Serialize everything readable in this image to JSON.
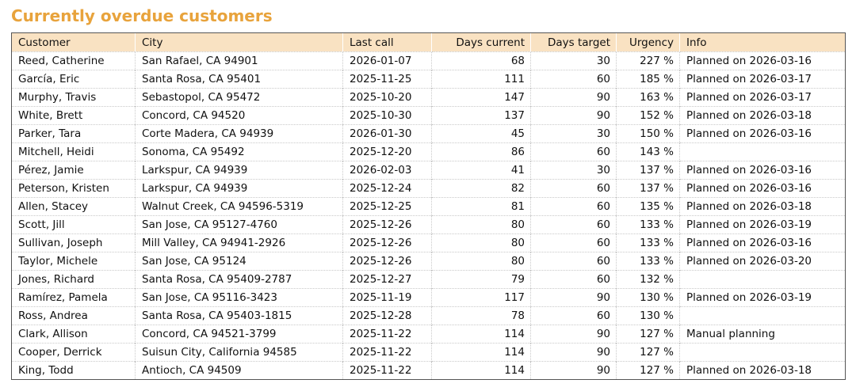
{
  "page": {
    "title": "Currently overdue customers"
  },
  "colors": {
    "accent": "#e8a33c",
    "header_bg": "#f9e2c2",
    "border": "#555555",
    "grid": "#c9c9c9",
    "text": "#111111"
  },
  "table": {
    "columns": [
      {
        "key": "customer",
        "label": "Customer",
        "align": "left"
      },
      {
        "key": "city",
        "label": "City",
        "align": "left"
      },
      {
        "key": "last-call",
        "label": "Last call",
        "align": "left"
      },
      {
        "key": "days-current",
        "label": "Days current",
        "align": "right"
      },
      {
        "key": "days-target",
        "label": "Days target",
        "align": "right"
      },
      {
        "key": "urgency",
        "label": "Urgency",
        "align": "right"
      },
      {
        "key": "info",
        "label": "Info",
        "align": "left"
      }
    ],
    "rows": [
      [
        "Reed, Catherine",
        "San Rafael, CA 94901",
        "2026-01-07",
        "68",
        "30",
        "227 %",
        "Planned on 2026-03-16"
      ],
      [
        "García, Eric",
        "Santa Rosa, CA 95401",
        "2025-11-25",
        "111",
        "60",
        "185 %",
        "Planned on 2026-03-17"
      ],
      [
        "Murphy, Travis",
        "Sebastopol, CA 95472",
        "2025-10-20",
        "147",
        "90",
        "163 %",
        "Planned on 2026-03-17"
      ],
      [
        "White, Brett",
        "Concord, CA 94520",
        "2025-10-30",
        "137",
        "90",
        "152 %",
        "Planned on 2026-03-18"
      ],
      [
        "Parker, Tara",
        "Corte Madera, CA 94939",
        "2026-01-30",
        "45",
        "30",
        "150 %",
        "Planned on 2026-03-16"
      ],
      [
        "Mitchell, Heidi",
        "Sonoma, CA 95492",
        "2025-12-20",
        "86",
        "60",
        "143 %",
        ""
      ],
      [
        "Pérez, Jamie",
        "Larkspur, CA 94939",
        "2026-02-03",
        "41",
        "30",
        "137 %",
        "Planned on 2026-03-16"
      ],
      [
        "Peterson, Kristen",
        "Larkspur, CA 94939",
        "2025-12-24",
        "82",
        "60",
        "137 %",
        "Planned on 2026-03-16"
      ],
      [
        "Allen, Stacey",
        "Walnut Creek, CA 94596-5319",
        "2025-12-25",
        "81",
        "60",
        "135 %",
        "Planned on 2026-03-18"
      ],
      [
        "Scott, Jill",
        "San Jose, CA 95127-4760",
        "2025-12-26",
        "80",
        "60",
        "133 %",
        "Planned on 2026-03-19"
      ],
      [
        "Sullivan, Joseph",
        "Mill Valley, CA 94941-2926",
        "2025-12-26",
        "80",
        "60",
        "133 %",
        "Planned on 2026-03-16"
      ],
      [
        "Taylor, Michele",
        "San Jose, CA 95124",
        "2025-12-26",
        "80",
        "60",
        "133 %",
        "Planned on 2026-03-20"
      ],
      [
        "Jones, Richard",
        "Santa Rosa, CA 95409-2787",
        "2025-12-27",
        "79",
        "60",
        "132 %",
        ""
      ],
      [
        "Ramírez, Pamela",
        "San Jose, CA 95116-3423",
        "2025-11-19",
        "117",
        "90",
        "130 %",
        "Planned on 2026-03-19"
      ],
      [
        "Ross, Andrea",
        "Santa Rosa, CA 95403-1815",
        "2025-12-28",
        "78",
        "60",
        "130 %",
        ""
      ],
      [
        "Clark, Allison",
        "Concord, CA 94521-3799",
        "2025-11-22",
        "114",
        "90",
        "127 %",
        "Manual planning"
      ],
      [
        "Cooper, Derrick",
        "Suisun City, California 94585",
        "2025-11-22",
        "114",
        "90",
        "127 %",
        ""
      ],
      [
        "King, Todd",
        "Antioch, CA 94509",
        "2025-11-22",
        "114",
        "90",
        "127 %",
        "Planned on 2026-03-18"
      ]
    ]
  }
}
